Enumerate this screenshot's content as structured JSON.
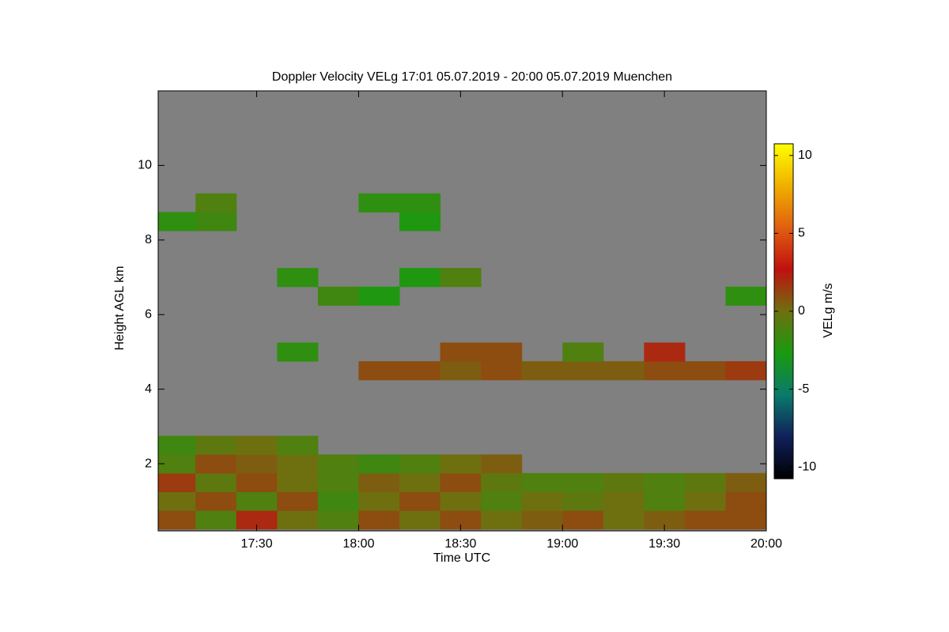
{
  "chart_data": {
    "type": "heatmap",
    "title": "Doppler Velocity VELg   17:01 05.07.2019 - 20:00 05.07.2019 Muenchen",
    "x_label": "Time UTC",
    "y_label": "Height AGL km",
    "xlim": [
      17.0167,
      20
    ],
    "xticks": [
      {
        "value": 17.5,
        "label": "17:30"
      },
      {
        "value": 18,
        "label": "18:00"
      },
      {
        "value": 18.5,
        "label": "18:30"
      },
      {
        "value": 19,
        "label": "19:00"
      },
      {
        "value": 19.5,
        "label": "19:30"
      },
      {
        "value": 20,
        "label": "20:00"
      }
    ],
    "ylim": [
      0.2,
      12
    ],
    "yticks": [
      2,
      4,
      6,
      8,
      10
    ],
    "background_color": "#808080",
    "x": [
      17.1,
      17.3,
      17.5,
      17.7,
      17.9,
      18.1,
      18.3,
      18.5,
      18.7,
      18.9,
      19.1,
      19.3,
      19.5,
      19.7,
      19.9
    ],
    "y": [
      0.5,
      1,
      1.5,
      2,
      2.5,
      3,
      3.5,
      4,
      4.5,
      5,
      5.5,
      6,
      6.5,
      7,
      7.5,
      8,
      8.5,
      9,
      9.5,
      10,
      10.5,
      11,
      11.5
    ],
    "z": [
      [
        1,
        -1,
        2,
        0,
        -1,
        1,
        0,
        1,
        0,
        0.5,
        1,
        0,
        0.5,
        1,
        1
      ],
      [
        0,
        1,
        -1,
        1,
        -1.5,
        0,
        1,
        0,
        -1,
        0,
        -0.5,
        0,
        -1,
        0,
        1
      ],
      [
        1.5,
        -0.5,
        1,
        0,
        -1,
        0.5,
        0,
        1,
        -0.5,
        -1,
        -1,
        -0.5,
        -1,
        -0.5,
        0.5
      ],
      [
        -1,
        1,
        0.5,
        0,
        -1,
        -1.5,
        -1,
        0,
        0.5,
        null,
        null,
        null,
        null,
        null,
        null
      ],
      [
        -1.5,
        -0.5,
        0,
        -1,
        null,
        null,
        null,
        null,
        null,
        null,
        null,
        null,
        null,
        null,
        null
      ],
      [
        null,
        null,
        null,
        null,
        null,
        null,
        null,
        null,
        null,
        null,
        null,
        null,
        null,
        null,
        null
      ],
      [
        null,
        null,
        null,
        null,
        null,
        null,
        null,
        null,
        null,
        null,
        null,
        null,
        null,
        null,
        null
      ],
      [
        null,
        null,
        null,
        null,
        null,
        null,
        null,
        null,
        null,
        null,
        null,
        null,
        null,
        null,
        null
      ],
      [
        null,
        null,
        null,
        null,
        null,
        1,
        1,
        0.5,
        1,
        0.5,
        0.5,
        0.5,
        1,
        1,
        1.5
      ],
      [
        null,
        null,
        null,
        -2,
        null,
        null,
        null,
        1,
        1,
        null,
        -1,
        null,
        2,
        null,
        null
      ],
      [
        null,
        null,
        null,
        null,
        null,
        null,
        null,
        null,
        null,
        null,
        null,
        null,
        null,
        null,
        null
      ],
      [
        null,
        null,
        null,
        null,
        null,
        null,
        null,
        null,
        null,
        null,
        null,
        null,
        null,
        null,
        null
      ],
      [
        null,
        null,
        null,
        null,
        -1.5,
        -2.5,
        null,
        null,
        null,
        null,
        null,
        null,
        null,
        null,
        -2
      ],
      [
        null,
        null,
        null,
        -2,
        null,
        null,
        -2.5,
        -1,
        null,
        null,
        null,
        null,
        null,
        null,
        null
      ],
      [
        null,
        null,
        null,
        null,
        null,
        null,
        null,
        null,
        null,
        null,
        null,
        null,
        null,
        null,
        null
      ],
      [
        null,
        null,
        null,
        null,
        null,
        null,
        null,
        null,
        null,
        null,
        null,
        null,
        null,
        null,
        null
      ],
      [
        -2,
        -1.5,
        null,
        null,
        null,
        null,
        -2.5,
        null,
        null,
        null,
        null,
        null,
        null,
        null,
        null
      ],
      [
        null,
        -1,
        null,
        null,
        null,
        -2,
        -2,
        null,
        null,
        null,
        null,
        null,
        null,
        null,
        null
      ],
      [
        null,
        null,
        null,
        null,
        null,
        null,
        null,
        null,
        null,
        null,
        null,
        null,
        null,
        null,
        null
      ],
      [
        null,
        null,
        null,
        null,
        null,
        null,
        null,
        null,
        null,
        null,
        null,
        null,
        null,
        null,
        null
      ],
      [
        null,
        null,
        null,
        null,
        null,
        null,
        null,
        null,
        null,
        null,
        null,
        null,
        null,
        null,
        null
      ],
      [
        null,
        null,
        null,
        null,
        null,
        null,
        null,
        null,
        null,
        null,
        null,
        null,
        null,
        null,
        null
      ],
      [
        null,
        null,
        null,
        null,
        null,
        null,
        null,
        null,
        null,
        null,
        null,
        null,
        null,
        null,
        null
      ]
    ],
    "colorbar": {
      "label": "VELg m/s",
      "zlim": [
        -10.75,
        10.75
      ],
      "ticks": [
        -10,
        -5,
        0,
        5,
        10
      ],
      "colorscale": [
        "#000000",
        "#10205a",
        "#0a7a6a",
        "#1a9a10",
        "#6e7010",
        "#c01010",
        "#e06010",
        "#f0b000",
        "#ffff00"
      ]
    }
  }
}
